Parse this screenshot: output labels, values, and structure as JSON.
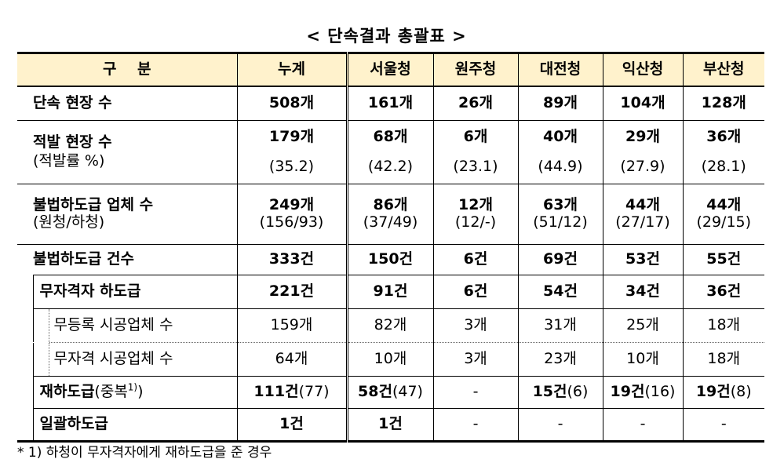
{
  "title": "< 단속결과 총괄표 >",
  "headers": [
    "구    분",
    "누계",
    "서울청",
    "원주청",
    "대전청",
    "익산청",
    "부산청"
  ],
  "rows": {
    "sites": {
      "label": "단속 현장 수",
      "values": [
        "508개",
        "161개",
        "26개",
        "89개",
        "104개",
        "128개"
      ]
    },
    "caught": {
      "label": "적발 현장 수",
      "sublabel": "(적발률 %)",
      "values": [
        "179개",
        "68개",
        "6개",
        "40개",
        "29개",
        "36개"
      ],
      "rates": [
        "(35.2)",
        "(42.2)",
        "(23.1)",
        "(44.9)",
        "(27.9)",
        "(28.1)"
      ]
    },
    "firms": {
      "label": "불법하도급 업체 수",
      "sublabel": "(원청/하청)",
      "values": [
        "249개",
        "86개",
        "12개",
        "63개",
        "44개",
        "44개"
      ],
      "split": [
        "(156/93)",
        "(37/49)",
        "(12/-)",
        "(51/12)",
        "(27/17)",
        "(29/15)"
      ]
    },
    "cases": {
      "label": "불법하도급 건수",
      "values": [
        "333건",
        "150건",
        "6건",
        "69건",
        "53건",
        "55건"
      ]
    },
    "unqualified": {
      "label": "무자격자 하도급",
      "values": [
        "221건",
        "91건",
        "6건",
        "54건",
        "34건",
        "36건"
      ]
    },
    "unregistered": {
      "label": "무등록 시공업체 수",
      "values": [
        "159개",
        "82개",
        "3개",
        "31개",
        "25개",
        "18개"
      ]
    },
    "unlicensed": {
      "label": "무자격 시공업체 수",
      "values": [
        "64개",
        "10개",
        "3개",
        "23개",
        "10개",
        "18개"
      ]
    },
    "resub": {
      "label": "재하도급",
      "label_suffix": "(중복",
      "sup": "1)",
      "label_close": ")",
      "main": [
        "111건",
        "58건",
        "-",
        "15건",
        "19건",
        "19건"
      ],
      "dup": [
        "(77)",
        "(47)",
        "",
        "(6)",
        "(16)",
        "(8)"
      ]
    },
    "bulk": {
      "label": "일괄하도급",
      "values": [
        "1건",
        "1건",
        "-",
        "-",
        "-",
        "-"
      ]
    }
  },
  "footnote": "* 1) 하청이 무자격자에게 재하도급을 준 경우"
}
